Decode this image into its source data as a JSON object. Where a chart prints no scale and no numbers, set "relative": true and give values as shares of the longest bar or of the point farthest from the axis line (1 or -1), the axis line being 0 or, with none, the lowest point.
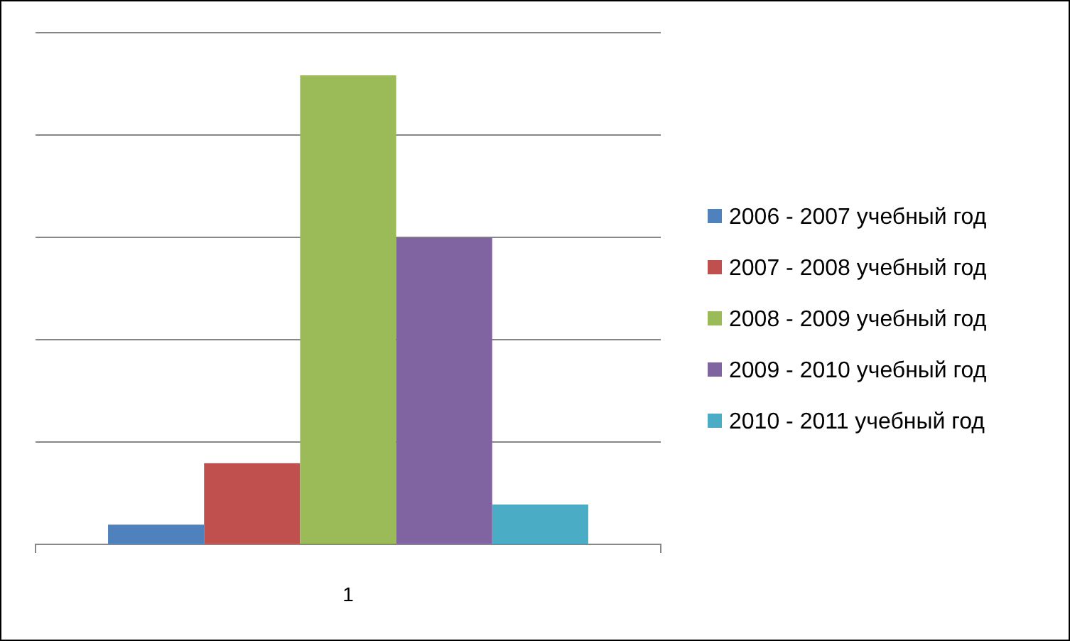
{
  "chart_data": {
    "type": "bar",
    "relative": true,
    "stacked": true,
    "categories": [
      null,
      null,
      "1",
      null,
      null
    ],
    "grid": "y",
    "legend": "right",
    "series": [
      {
        "name": "2006 - 2007 учебный год",
        "color": "#4f81bd",
        "values": [
          0.042,
          null,
          null,
          null,
          null
        ]
      },
      {
        "name": "2007 - 2008 учебный год",
        "color": "#c0504d",
        "values": [
          null,
          0.173,
          null,
          null,
          null
        ]
      },
      {
        "name": "2008 - 2009 учебный год",
        "color": "#9bbb59",
        "values": [
          null,
          null,
          1,
          null,
          null
        ]
      },
      {
        "name": "2009 - 2010 учебный год",
        "color": "#8064a2",
        "values": [
          null,
          null,
          null,
          0.654,
          null
        ]
      },
      {
        "name": "2010 - 2011 учебный год",
        "color": "#4bacc6",
        "values": [
          null,
          null,
          null,
          null,
          0.085
        ]
      }
    ]
  }
}
